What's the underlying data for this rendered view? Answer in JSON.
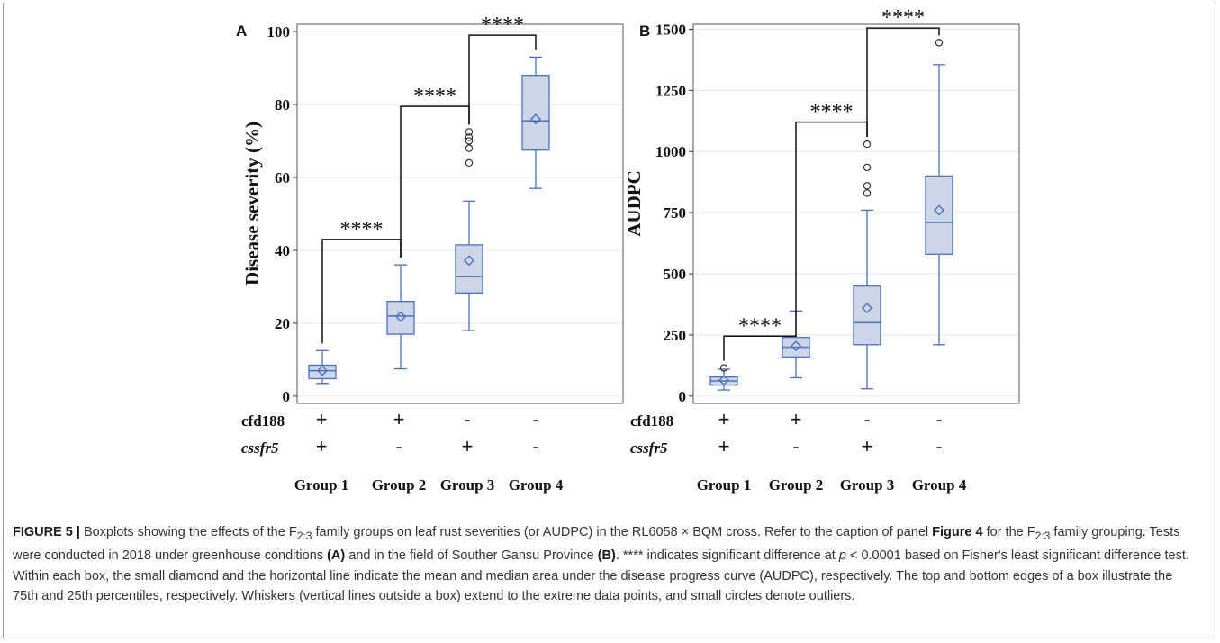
{
  "panels": [
    {
      "letter": "A",
      "ylabel": "Disease severity (%)",
      "marker_rows": [
        {
          "label": "cfd188",
          "italic": false,
          "signs": [
            "+",
            "+",
            "-",
            "-"
          ]
        },
        {
          "label": "cssfr5",
          "italic": true,
          "signs": [
            "+",
            "-",
            "+",
            "-"
          ]
        }
      ],
      "group_labels": [
        "Group 1",
        "Group 2",
        "Group 3",
        "Group 4"
      ],
      "significance": [
        "****",
        "****",
        "****"
      ]
    },
    {
      "letter": "B",
      "ylabel": "AUDPC",
      "marker_rows": [
        {
          "label": "cfd188",
          "italic": false,
          "signs": [
            "+",
            "+",
            "-",
            "-"
          ]
        },
        {
          "label": "cssfr5",
          "italic": true,
          "signs": [
            "+",
            "-",
            "+",
            "-"
          ]
        }
      ],
      "group_labels": [
        "Group 1",
        "Group 2",
        "Group 3",
        "Group 4"
      ],
      "significance": [
        "****",
        "****",
        "****"
      ]
    }
  ],
  "caption": {
    "label": "FIGURE 5 |",
    "part1": " Boxplots showing the effects of the F",
    "sub1": "2:3",
    "part2": " family groups on leaf rust severities (or AUDPC) in the RL6058 × BQM cross. Refer to the caption of panel ",
    "ref": "Figure 4",
    "part3": " for the F",
    "sub2": "2:3",
    "part4": " family grouping. Tests were conducted in 2018 under greenhouse conditions ",
    "a": "(A)",
    "part5": " and in the field of Souther Gansu Province ",
    "b": "(B)",
    "part6": ". **** indicates significant difference at ",
    "p": "p",
    "part7": " < 0.0001 based on Fisher's least significant difference test. Within each box, the small diamond and the horizontal line indicate the mean and median area under the disease progress curve (AUDPC), respectively. The top and bottom edges of a box illustrate the 75th and 25th percentiles, respectively. Whiskers (vertical lines outside a box) extend to the extreme data points, and small circles denote outliers."
  },
  "chart_data": [
    {
      "type": "box",
      "panel": "A",
      "categories": [
        "Group 1",
        "Group 2",
        "Group 3",
        "Group 4"
      ],
      "ylabel": "Disease severity (%)",
      "ylim": [
        -2,
        102
      ],
      "yticks": [
        0,
        20,
        40,
        60,
        80,
        100
      ],
      "grid": true,
      "boxes": [
        {
          "min": 3.5,
          "q1": 4.8,
          "median": 7,
          "q3": 8.5,
          "max": 12.5,
          "mean": 7,
          "outliers": []
        },
        {
          "min": 7.5,
          "q1": 17,
          "median": 22,
          "q3": 26,
          "max": 36,
          "mean": 21.8,
          "outliers": []
        },
        {
          "min": 18,
          "q1": 28.3,
          "median": 32.8,
          "q3": 41.5,
          "max": 53.5,
          "mean": 37.2,
          "outliers": [
            64,
            68,
            70,
            71,
            72.5
          ]
        },
        {
          "min": 57,
          "q1": 67.5,
          "median": 75.5,
          "q3": 88,
          "max": 93,
          "mean": 76,
          "outliers": []
        }
      ],
      "brackets": [
        {
          "from": 0,
          "to": 1,
          "y": 43,
          "label": "****"
        },
        {
          "from": 1,
          "to": 2,
          "y": 79.5,
          "label": "****"
        },
        {
          "from": 2,
          "to": 3,
          "y": 99,
          "label": "****"
        }
      ]
    },
    {
      "type": "box",
      "panel": "B",
      "categories": [
        "Group 1",
        "Group 2",
        "Group 3",
        "Group 4"
      ],
      "ylabel": "AUDPC",
      "ylim": [
        -30,
        1520
      ],
      "yticks": [
        0,
        250,
        500,
        750,
        1000,
        1250,
        1500
      ],
      "grid": true,
      "boxes": [
        {
          "min": 25,
          "q1": 45,
          "median": 62,
          "q3": 78,
          "max": 110,
          "mean": 65,
          "outliers": [
            115
          ]
        },
        {
          "min": 75,
          "q1": 160,
          "median": 200,
          "q3": 240,
          "max": 348,
          "mean": 205,
          "outliers": []
        },
        {
          "min": 30,
          "q1": 210,
          "median": 300,
          "q3": 450,
          "max": 760,
          "mean": 360,
          "outliers": [
            830,
            860,
            935,
            1030
          ]
        },
        {
          "min": 210,
          "q1": 580,
          "median": 710,
          "q3": 900,
          "max": 1355,
          "mean": 760,
          "outliers": [
            1445
          ]
        }
      ],
      "brackets": [
        {
          "from": 0,
          "to": 1,
          "y": 245,
          "label": "****"
        },
        {
          "from": 1,
          "to": 2,
          "y": 1120,
          "label": "****"
        },
        {
          "from": 2,
          "to": 3,
          "y": 1505,
          "label": "****"
        }
      ]
    }
  ]
}
